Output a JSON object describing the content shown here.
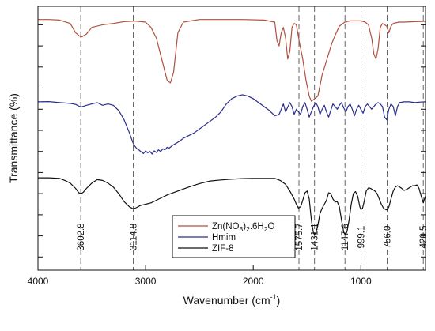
{
  "chart_data": {
    "type": "line",
    "title": "",
    "xlabel_main": "Wavenumber (cm",
    "xlabel_sup": "-1",
    "xlabel_end": ")",
    "ylabel": "Transmittance (%)",
    "x_reversed": true,
    "xlim": [
      4000,
      400
    ],
    "ylim": [
      0,
      100
    ],
    "x_ticks": [
      4000,
      3000,
      2000,
      1000
    ],
    "x_tick_labels": [
      "4000",
      "3000",
      "2000",
      "1000"
    ],
    "y_minor_ticks": [
      5,
      13,
      21,
      29,
      37,
      45,
      53,
      61,
      69,
      77,
      85,
      93
    ],
    "y_tick_labels_shown": false,
    "legend_position": "bottom-center",
    "peak_lines": [
      3602.8,
      3114.8,
      1575.7,
      1431.1,
      1147.6,
      999.1,
      756.0,
      420.5
    ],
    "peak_labels": [
      "3602.8",
      "3114.8",
      "1575.7",
      "1431.1",
      "1147.6",
      "999.1",
      "756.0",
      "420.5"
    ],
    "series": [
      {
        "name": "Zn(NO3)2.6H2O",
        "legend_main": "Zn(NO",
        "legend_s1": "3",
        "legend_mid": ")",
        "legend_s2": "2",
        "legend_mid2": ".6H",
        "legend_s3": "2",
        "legend_end": "O",
        "color": "#b0523e",
        "points": [
          [
            4000,
            95
          ],
          [
            3900,
            95
          ],
          [
            3800,
            94.8
          ],
          [
            3700,
            93.5
          ],
          [
            3650,
            90
          ],
          [
            3600,
            88.3
          ],
          [
            3550,
            89.5
          ],
          [
            3500,
            92
          ],
          [
            3400,
            93
          ],
          [
            3300,
            93.5
          ],
          [
            3200,
            94.2
          ],
          [
            3100,
            94.4
          ],
          [
            3000,
            94
          ],
          [
            2950,
            92
          ],
          [
            2900,
            88
          ],
          [
            2850,
            80
          ],
          [
            2800,
            72
          ],
          [
            2770,
            71
          ],
          [
            2740,
            75
          ],
          [
            2700,
            90
          ],
          [
            2650,
            94
          ],
          [
            2500,
            95
          ],
          [
            2300,
            95
          ],
          [
            2100,
            95
          ],
          [
            1900,
            94.8
          ],
          [
            1800,
            94
          ],
          [
            1780,
            87
          ],
          [
            1760,
            85
          ],
          [
            1740,
            90
          ],
          [
            1720,
            92
          ],
          [
            1700,
            88
          ],
          [
            1680,
            80
          ],
          [
            1660,
            83
          ],
          [
            1640,
            92
          ],
          [
            1620,
            93.5
          ],
          [
            1600,
            93
          ],
          [
            1570,
            86
          ],
          [
            1540,
            80
          ],
          [
            1510,
            72
          ],
          [
            1480,
            66
          ],
          [
            1460,
            64
          ],
          [
            1430,
            65
          ],
          [
            1400,
            66
          ],
          [
            1380,
            70
          ],
          [
            1360,
            74
          ],
          [
            1330,
            78
          ],
          [
            1300,
            82
          ],
          [
            1270,
            86
          ],
          [
            1240,
            89
          ],
          [
            1200,
            92.5
          ],
          [
            1150,
            94
          ],
          [
            1100,
            94.5
          ],
          [
            1050,
            94.5
          ],
          [
            1000,
            94.5
          ],
          [
            960,
            94
          ],
          [
            930,
            93
          ],
          [
            900,
            88
          ],
          [
            880,
            82
          ],
          [
            860,
            80
          ],
          [
            840,
            84
          ],
          [
            820,
            92
          ],
          [
            800,
            93.5
          ],
          [
            760,
            92.5
          ],
          [
            740,
            90
          ],
          [
            720,
            92.5
          ],
          [
            700,
            93.5
          ],
          [
            650,
            94
          ],
          [
            600,
            94
          ],
          [
            500,
            94.2
          ],
          [
            400,
            94.3
          ]
        ]
      },
      {
        "name": "Hmim",
        "legend_main": "Hmim",
        "color": "#2a2d8a",
        "points": [
          [
            4000,
            63.8
          ],
          [
            3900,
            63.9
          ],
          [
            3800,
            63.5
          ],
          [
            3700,
            63.2
          ],
          [
            3650,
            62.8
          ],
          [
            3600,
            61.8
          ],
          [
            3550,
            62.5
          ],
          [
            3500,
            63
          ],
          [
            3450,
            63.5
          ],
          [
            3400,
            62.5
          ],
          [
            3350,
            63
          ],
          [
            3300,
            62.5
          ],
          [
            3250,
            60.5
          ],
          [
            3200,
            57
          ],
          [
            3180,
            55
          ],
          [
            3150,
            52
          ],
          [
            3120,
            48.5
          ],
          [
            3100,
            47
          ],
          [
            3080,
            46
          ],
          [
            3060,
            45.5
          ],
          [
            3040,
            44.8
          ],
          [
            3020,
            44.2
          ],
          [
            3000,
            45.2
          ],
          [
            2980,
            44.5
          ],
          [
            2960,
            45
          ],
          [
            2940,
            44
          ],
          [
            2920,
            45.2
          ],
          [
            2900,
            44.6
          ],
          [
            2880,
            45.6
          ],
          [
            2860,
            45
          ],
          [
            2840,
            46
          ],
          [
            2820,
            45.6
          ],
          [
            2800,
            46.6
          ],
          [
            2780,
            46.3
          ],
          [
            2750,
            47.3
          ],
          [
            2720,
            48
          ],
          [
            2700,
            48.5
          ],
          [
            2680,
            49
          ],
          [
            2650,
            50
          ],
          [
            2600,
            51
          ],
          [
            2550,
            52
          ],
          [
            2500,
            53.5
          ],
          [
            2450,
            55
          ],
          [
            2400,
            56.5
          ],
          [
            2350,
            58
          ],
          [
            2300,
            60
          ],
          [
            2250,
            63
          ],
          [
            2200,
            65
          ],
          [
            2150,
            66
          ],
          [
            2100,
            66.5
          ],
          [
            2050,
            66
          ],
          [
            2000,
            65
          ],
          [
            1950,
            63.5
          ],
          [
            1900,
            62
          ],
          [
            1850,
            60.5
          ],
          [
            1800,
            58.5
          ],
          [
            1760,
            59
          ],
          [
            1720,
            63
          ],
          [
            1700,
            60
          ],
          [
            1680,
            61.8
          ],
          [
            1660,
            63.5
          ],
          [
            1640,
            62
          ],
          [
            1620,
            59
          ],
          [
            1600,
            61
          ],
          [
            1580,
            60
          ],
          [
            1560,
            59
          ],
          [
            1540,
            62
          ],
          [
            1520,
            63.5
          ],
          [
            1500,
            61
          ],
          [
            1480,
            58
          ],
          [
            1460,
            60
          ],
          [
            1440,
            62
          ],
          [
            1420,
            63.5
          ],
          [
            1400,
            62
          ],
          [
            1380,
            59
          ],
          [
            1360,
            61
          ],
          [
            1340,
            62.5
          ],
          [
            1320,
            60
          ],
          [
            1300,
            58
          ],
          [
            1280,
            60.5
          ],
          [
            1260,
            63
          ],
          [
            1240,
            62
          ],
          [
            1220,
            61
          ],
          [
            1200,
            62.5
          ],
          [
            1180,
            63.5
          ],
          [
            1160,
            61.5
          ],
          [
            1140,
            60
          ],
          [
            1120,
            62
          ],
          [
            1100,
            63
          ],
          [
            1080,
            61
          ],
          [
            1060,
            58.5
          ],
          [
            1040,
            61
          ],
          [
            1020,
            62.5
          ],
          [
            1000,
            61
          ],
          [
            980,
            59.5
          ],
          [
            960,
            62
          ],
          [
            940,
            63
          ],
          [
            920,
            62
          ],
          [
            900,
            61
          ],
          [
            880,
            62
          ],
          [
            860,
            63
          ],
          [
            840,
            63.5
          ],
          [
            820,
            63
          ],
          [
            800,
            62
          ],
          [
            780,
            58
          ],
          [
            760,
            57
          ],
          [
            740,
            61
          ],
          [
            720,
            63
          ],
          [
            700,
            62
          ],
          [
            680,
            58.5
          ],
          [
            660,
            62
          ],
          [
            640,
            63.5
          ],
          [
            600,
            63.8
          ],
          [
            550,
            63.8
          ],
          [
            500,
            63.5
          ],
          [
            450,
            63.7
          ],
          [
            400,
            63.8
          ]
        ]
      },
      {
        "name": "ZIF-8",
        "legend_main": "ZIF-8",
        "color": "#111111",
        "points": [
          [
            4000,
            35
          ],
          [
            3900,
            35
          ],
          [
            3800,
            34.8
          ],
          [
            3750,
            34
          ],
          [
            3700,
            33
          ],
          [
            3650,
            31
          ],
          [
            3620,
            29.3
          ],
          [
            3600,
            29
          ],
          [
            3580,
            29.5
          ],
          [
            3550,
            31
          ],
          [
            3500,
            33
          ],
          [
            3450,
            34.3
          ],
          [
            3400,
            34
          ],
          [
            3350,
            33
          ],
          [
            3300,
            31.5
          ],
          [
            3250,
            29
          ],
          [
            3200,
            26
          ],
          [
            3150,
            24
          ],
          [
            3114.8,
            23.2
          ],
          [
            3080,
            23.8
          ],
          [
            3050,
            24.5
          ],
          [
            3000,
            25
          ],
          [
            2950,
            25.5
          ],
          [
            2900,
            26.5
          ],
          [
            2850,
            27.5
          ],
          [
            2800,
            28.5
          ],
          [
            2700,
            30
          ],
          [
            2600,
            31.5
          ],
          [
            2500,
            32.8
          ],
          [
            2400,
            33.8
          ],
          [
            2300,
            34.2
          ],
          [
            2200,
            34.5
          ],
          [
            2100,
            34.7
          ],
          [
            2000,
            34.8
          ],
          [
            1900,
            34.8
          ],
          [
            1800,
            34.8
          ],
          [
            1750,
            34
          ],
          [
            1700,
            32.5
          ],
          [
            1660,
            30
          ],
          [
            1620,
            27
          ],
          [
            1600,
            25
          ],
          [
            1580,
            23.5
          ],
          [
            1560,
            24
          ],
          [
            1540,
            26.5
          ],
          [
            1520,
            29.3
          ],
          [
            1500,
            30
          ],
          [
            1480,
            27
          ],
          [
            1460,
            19
          ],
          [
            1440,
            14
          ],
          [
            1431.1,
            13.5
          ],
          [
            1420,
            14
          ],
          [
            1400,
            17
          ],
          [
            1380,
            21.5
          ],
          [
            1360,
            23.5
          ],
          [
            1340,
            25
          ],
          [
            1320,
            26.5
          ],
          [
            1300,
            29.3
          ],
          [
            1280,
            29
          ],
          [
            1260,
            27
          ],
          [
            1240,
            25.8
          ],
          [
            1220,
            26
          ],
          [
            1200,
            24
          ],
          [
            1180,
            19
          ],
          [
            1160,
            14.5
          ],
          [
            1147.6,
            13.5
          ],
          [
            1130,
            14.5
          ],
          [
            1110,
            19
          ],
          [
            1090,
            25
          ],
          [
            1070,
            29
          ],
          [
            1050,
            29.8
          ],
          [
            1030,
            28
          ],
          [
            1010,
            24
          ],
          [
            999.1,
            23
          ],
          [
            985,
            23.5
          ],
          [
            970,
            26
          ],
          [
            950,
            30
          ],
          [
            930,
            31.2
          ],
          [
            910,
            31
          ],
          [
            890,
            30.5
          ],
          [
            870,
            30
          ],
          [
            850,
            29
          ],
          [
            830,
            27
          ],
          [
            810,
            25
          ],
          [
            790,
            23.5
          ],
          [
            770,
            23
          ],
          [
            756,
            22.8
          ],
          [
            740,
            24
          ],
          [
            720,
            27
          ],
          [
            700,
            30
          ],
          [
            680,
            31.5
          ],
          [
            660,
            32
          ],
          [
            640,
            31.5
          ],
          [
            620,
            31
          ],
          [
            600,
            30.2
          ],
          [
            580,
            30.5
          ],
          [
            560,
            31
          ],
          [
            540,
            31.5
          ],
          [
            520,
            32
          ],
          [
            500,
            32
          ],
          [
            480,
            32.3
          ],
          [
            460,
            31
          ],
          [
            440,
            28
          ],
          [
            420.5,
            25.5
          ],
          [
            410,
            27
          ],
          [
            400,
            28
          ]
        ]
      }
    ]
  }
}
